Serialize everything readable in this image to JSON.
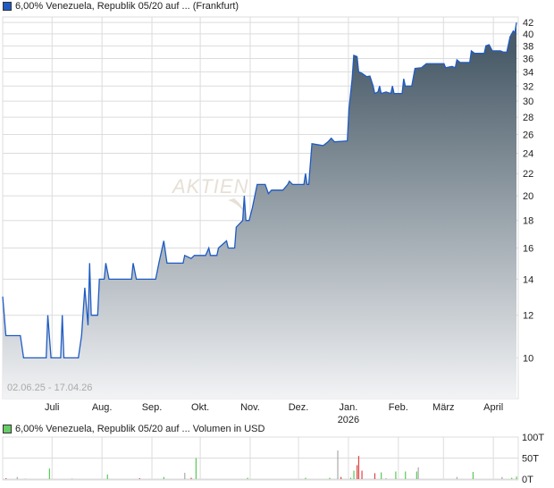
{
  "chart_data": [
    {
      "type": "area",
      "title": "6,00% Venezuela, Republik 05/20 auf ... (Frankfurt)",
      "date_range_label": "02.06.25 - 17.04.26",
      "y_scale": "log",
      "ylim": [
        8.4,
        43
      ],
      "y_ticks": [
        10,
        12,
        14,
        16,
        18,
        20,
        22,
        24,
        26,
        28,
        30,
        32,
        34,
        36,
        38,
        40,
        42
      ],
      "x_range": [
        "2025-06-02",
        "2026-04-17"
      ],
      "x_ticks": [
        {
          "date": "2025-07-01",
          "label": "Juli"
        },
        {
          "date": "2025-08-01",
          "label": "Aug."
        },
        {
          "date": "2025-09-01",
          "label": "Sep."
        },
        {
          "date": "2025-10-01",
          "label": "Okt."
        },
        {
          "date": "2025-11-01",
          "label": "Nov."
        },
        {
          "date": "2025-12-01",
          "label": "Dez."
        },
        {
          "date": "2026-01-01",
          "label": "Jan.",
          "sublabel": "2026"
        },
        {
          "date": "2026-02-01",
          "label": "Feb."
        },
        {
          "date": "2026-03-01",
          "label": "März"
        },
        {
          "date": "2026-04-01",
          "label": "April"
        }
      ],
      "grid": true,
      "colors": {
        "line": "#1f5bc4",
        "fill_top": "#4a5c69",
        "fill_bottom": "#f2f3f5",
        "legend": "#1f5bc4"
      },
      "watermark": "AKTIEN",
      "series": [
        [
          "2025-06-02",
          13
        ],
        [
          "2025-06-04",
          11
        ],
        [
          "2025-06-13",
          11
        ],
        [
          "2025-06-15",
          10
        ],
        [
          "2025-06-29",
          10
        ],
        [
          "2025-06-30",
          12
        ],
        [
          "2025-07-02",
          10
        ],
        [
          "2025-07-08",
          10
        ],
        [
          "2025-07-09",
          12
        ],
        [
          "2025-07-10",
          10
        ],
        [
          "2025-07-19",
          10
        ],
        [
          "2025-07-21",
          11
        ],
        [
          "2025-07-23",
          13.5
        ],
        [
          "2025-07-25",
          11.5
        ],
        [
          "2025-07-26",
          15
        ],
        [
          "2025-07-27",
          12
        ],
        [
          "2025-07-31",
          12
        ],
        [
          "2025-08-01",
          14
        ],
        [
          "2025-08-04",
          14
        ],
        [
          "2025-08-05",
          15
        ],
        [
          "2025-08-07",
          14
        ],
        [
          "2025-08-21",
          14
        ],
        [
          "2025-08-22",
          15
        ],
        [
          "2025-08-24",
          14
        ],
        [
          "2025-09-05",
          14
        ],
        [
          "2025-09-07",
          15
        ],
        [
          "2025-09-10",
          16.5
        ],
        [
          "2025-09-12",
          15
        ],
        [
          "2025-09-22",
          15
        ],
        [
          "2025-09-23",
          15.5
        ],
        [
          "2025-09-27",
          15.3
        ],
        [
          "2025-09-29",
          15.5
        ],
        [
          "2025-10-06",
          15.5
        ],
        [
          "2025-10-08",
          16
        ],
        [
          "2025-10-09",
          15.5
        ],
        [
          "2025-10-13",
          15.5
        ],
        [
          "2025-10-14",
          16
        ],
        [
          "2025-10-19",
          16.5
        ],
        [
          "2025-10-20",
          16
        ],
        [
          "2025-10-24",
          16
        ],
        [
          "2025-10-25",
          17.5
        ],
        [
          "2025-10-29",
          18
        ],
        [
          "2025-10-30",
          20
        ],
        [
          "2025-10-31",
          18
        ],
        [
          "2025-11-02",
          18
        ],
        [
          "2025-11-04",
          19
        ],
        [
          "2025-11-07",
          21
        ],
        [
          "2025-11-12",
          21
        ],
        [
          "2025-11-14",
          20.2
        ],
        [
          "2025-11-16",
          20.5
        ],
        [
          "2025-11-23",
          20.5
        ],
        [
          "2025-11-26",
          21
        ],
        [
          "2025-11-27",
          21.3
        ],
        [
          "2025-11-29",
          21
        ],
        [
          "2025-12-06",
          21
        ],
        [
          "2025-12-07",
          22
        ],
        [
          "2025-12-08",
          21
        ],
        [
          "2025-12-09",
          21
        ],
        [
          "2025-12-11",
          25
        ],
        [
          "2025-12-18",
          24.8
        ],
        [
          "2025-12-21",
          25.2
        ],
        [
          "2025-12-23",
          25.6
        ],
        [
          "2025-12-25",
          25.2
        ],
        [
          "2026-01-02",
          25.3
        ],
        [
          "2026-01-03",
          29
        ],
        [
          "2026-01-05",
          33
        ],
        [
          "2026-01-06",
          36.5
        ],
        [
          "2026-01-08",
          36.3
        ],
        [
          "2026-01-09",
          34
        ],
        [
          "2026-01-11",
          33.8
        ],
        [
          "2026-01-14",
          33.3
        ],
        [
          "2026-01-16",
          33.4
        ],
        [
          "2026-01-18",
          32
        ],
        [
          "2026-01-19",
          31
        ],
        [
          "2026-01-21",
          31.2
        ],
        [
          "2026-01-22",
          32
        ],
        [
          "2026-01-23",
          31
        ],
        [
          "2026-01-26",
          31.2
        ],
        [
          "2026-01-29",
          31
        ],
        [
          "2026-01-30",
          32
        ],
        [
          "2026-01-31",
          31
        ],
        [
          "2026-02-05",
          31
        ],
        [
          "2026-02-06",
          33
        ],
        [
          "2026-02-07",
          32
        ],
        [
          "2026-02-11",
          32
        ],
        [
          "2026-02-13",
          34.5
        ],
        [
          "2026-02-17",
          34.6
        ],
        [
          "2026-02-20",
          35.2
        ],
        [
          "2026-03-03",
          35.2
        ],
        [
          "2026-03-04",
          34.6
        ],
        [
          "2026-03-08",
          34.8
        ],
        [
          "2026-03-10",
          34.6
        ],
        [
          "2026-03-11",
          35.8
        ],
        [
          "2026-03-13",
          35.4
        ],
        [
          "2026-03-19",
          35.4
        ],
        [
          "2026-03-20",
          37.2
        ],
        [
          "2026-03-22",
          36.8
        ],
        [
          "2026-03-28",
          36.8
        ],
        [
          "2026-03-29",
          38
        ],
        [
          "2026-03-31",
          38.2
        ],
        [
          "2026-04-02",
          37.2
        ],
        [
          "2026-04-07",
          37.2
        ],
        [
          "2026-04-09",
          37
        ],
        [
          "2026-04-11",
          37
        ],
        [
          "2026-04-13",
          39.5
        ],
        [
          "2026-04-15",
          40.5
        ],
        [
          "2026-04-16",
          40.2
        ],
        [
          "2026-04-17",
          42
        ]
      ]
    },
    {
      "type": "bar",
      "title": "6,00% Venezuela, Republik 05/20 auf ... Volumen in USD",
      "ylim": [
        0,
        100
      ],
      "y_ticks": [
        {
          "v": 0,
          "label": "0T"
        },
        {
          "v": 50,
          "label": "50T"
        },
        {
          "v": 100,
          "label": "100T"
        }
      ],
      "colors": {
        "up": "#55cc55",
        "down": "#dd4444",
        "neutral": "#aaaaaa",
        "legend": "#66cc66"
      },
      "bars": [
        [
          "2025-06-04",
          2,
          "down"
        ],
        [
          "2025-06-11",
          5,
          "neutral"
        ],
        [
          "2025-06-16",
          1,
          "neutral"
        ],
        [
          "2025-07-01",
          25,
          "up"
        ],
        [
          "2025-07-15",
          1,
          "up"
        ],
        [
          "2025-08-06",
          11,
          "up"
        ],
        [
          "2025-08-26",
          2,
          "down"
        ],
        [
          "2025-09-10",
          5,
          "up"
        ],
        [
          "2025-09-23",
          15,
          "neutral"
        ],
        [
          "2025-09-27",
          3,
          "down"
        ],
        [
          "2025-09-30",
          50,
          "up"
        ],
        [
          "2025-11-01",
          3,
          "up"
        ],
        [
          "2025-12-07",
          3,
          "up"
        ],
        [
          "2025-12-22",
          3,
          "up"
        ],
        [
          "2025-12-27",
          68,
          "neutral"
        ],
        [
          "2025-12-29",
          5,
          "down"
        ],
        [
          "2026-01-04",
          3,
          "up"
        ],
        [
          "2026-01-06",
          20,
          "up"
        ],
        [
          "2026-01-08",
          33,
          "down"
        ],
        [
          "2026-01-09",
          55,
          "down"
        ],
        [
          "2026-01-11",
          20,
          "down"
        ],
        [
          "2026-01-19",
          14,
          "down"
        ],
        [
          "2026-01-23",
          16,
          "up"
        ],
        [
          "2026-01-26",
          2,
          "neutral"
        ],
        [
          "2026-02-01",
          18,
          "up"
        ],
        [
          "2026-02-07",
          18,
          "up"
        ],
        [
          "2026-02-14",
          18,
          "up"
        ],
        [
          "2026-02-15",
          28,
          "neutral"
        ],
        [
          "2026-03-11",
          5,
          "neutral"
        ],
        [
          "2026-03-21",
          17,
          "up"
        ],
        [
          "2026-04-08",
          5,
          "neutral"
        ],
        [
          "2026-04-14",
          3,
          "up"
        ],
        [
          "2026-04-17",
          6,
          "up"
        ]
      ]
    }
  ]
}
